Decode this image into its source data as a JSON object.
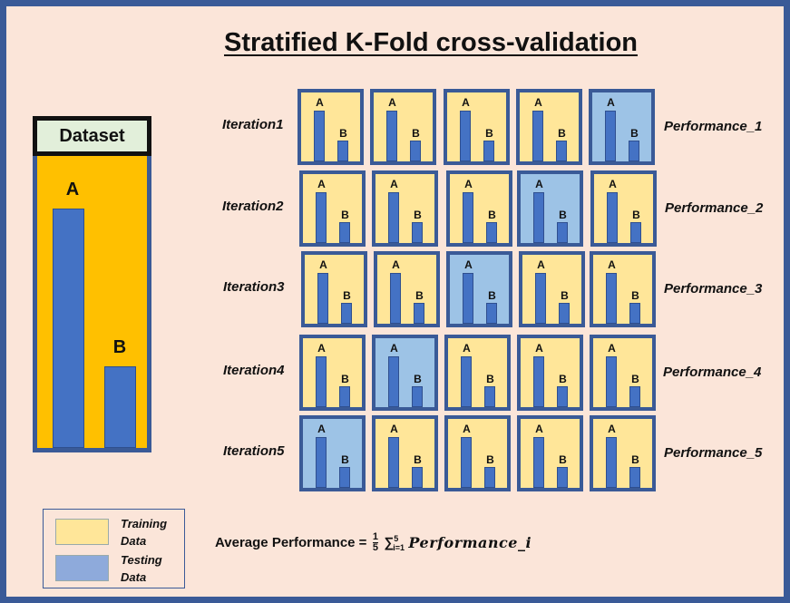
{
  "title": "Stratified K-Fold cross-validation",
  "colors": {
    "training": "#ffe699",
    "testing": "#9dc3e6",
    "dataset_body": "#ffc000",
    "bar": "#4472c4",
    "border": "#3a5a97"
  },
  "dataset": {
    "header": "Dataset",
    "class_a_label": "A",
    "class_b_label": "B",
    "class_a_relative_size": 1.0,
    "class_b_relative_size": 0.34
  },
  "iterations": [
    {
      "label": "Iteration1",
      "performance": "Performance_1",
      "test_fold": 5
    },
    {
      "label": "Iteration2",
      "performance": "Performance_2",
      "test_fold": 4
    },
    {
      "label": "Iteration3",
      "performance": "Performance_3",
      "test_fold": 3
    },
    {
      "label": "Iteration4",
      "performance": "Performance_4",
      "test_fold": 2
    },
    {
      "label": "Iteration5",
      "performance": "Performance_5",
      "test_fold": 1
    }
  ],
  "fold_bar_labels": {
    "a": "A",
    "b": "B"
  },
  "legend": {
    "training": "Training Data",
    "testing": "Testing Data"
  },
  "formula": {
    "lhs": "Average Performance =",
    "frac_num": "1",
    "frac_den": "5",
    "sum_symbol": "∑",
    "sum_upper": "5",
    "sum_lower": "i=1",
    "term": "Performance_i"
  }
}
